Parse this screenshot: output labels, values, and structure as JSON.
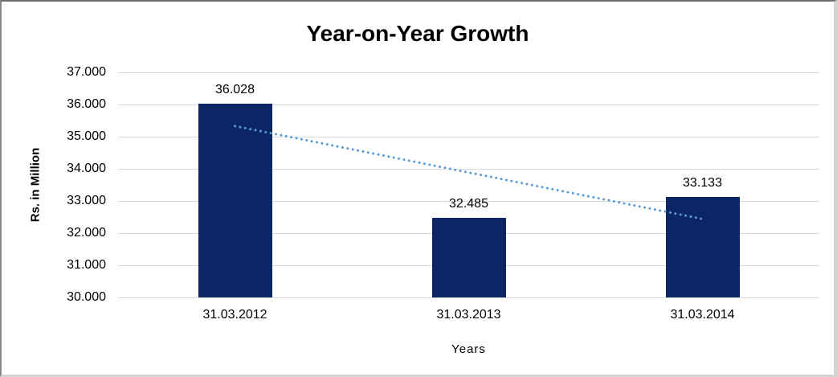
{
  "chart_data": {
    "type": "bar",
    "title": "Year-on-Year Growth",
    "xlabel": "Years",
    "ylabel": "Rs. in Million",
    "categories": [
      "31.03.2012",
      "31.03.2013",
      "31.03.2014"
    ],
    "values": [
      36.028,
      32.485,
      33.133
    ],
    "value_labels": [
      "36.028",
      "32.485",
      "33.133"
    ],
    "ylim": [
      30,
      37
    ],
    "yticks": [
      {
        "value": 37,
        "label": "37.000"
      },
      {
        "value": 36,
        "label": "36.000"
      },
      {
        "value": 35,
        "label": "35.000"
      },
      {
        "value": 34,
        "label": "34.000"
      },
      {
        "value": 33,
        "label": "33.000"
      },
      {
        "value": 32,
        "label": "32.000"
      },
      {
        "value": 31,
        "label": "31.000"
      },
      {
        "value": 30,
        "label": "30.000"
      }
    ],
    "grid": "horizontal",
    "legend": "none",
    "colors": {
      "bar": "#0B2565",
      "trendline": "#5B9BD5",
      "gridline": "#D9D9D9",
      "text": "#000000"
    },
    "trendline": {
      "type": "linear",
      "style": "dotted",
      "start_value": 35.33,
      "end_value": 32.44
    }
  }
}
